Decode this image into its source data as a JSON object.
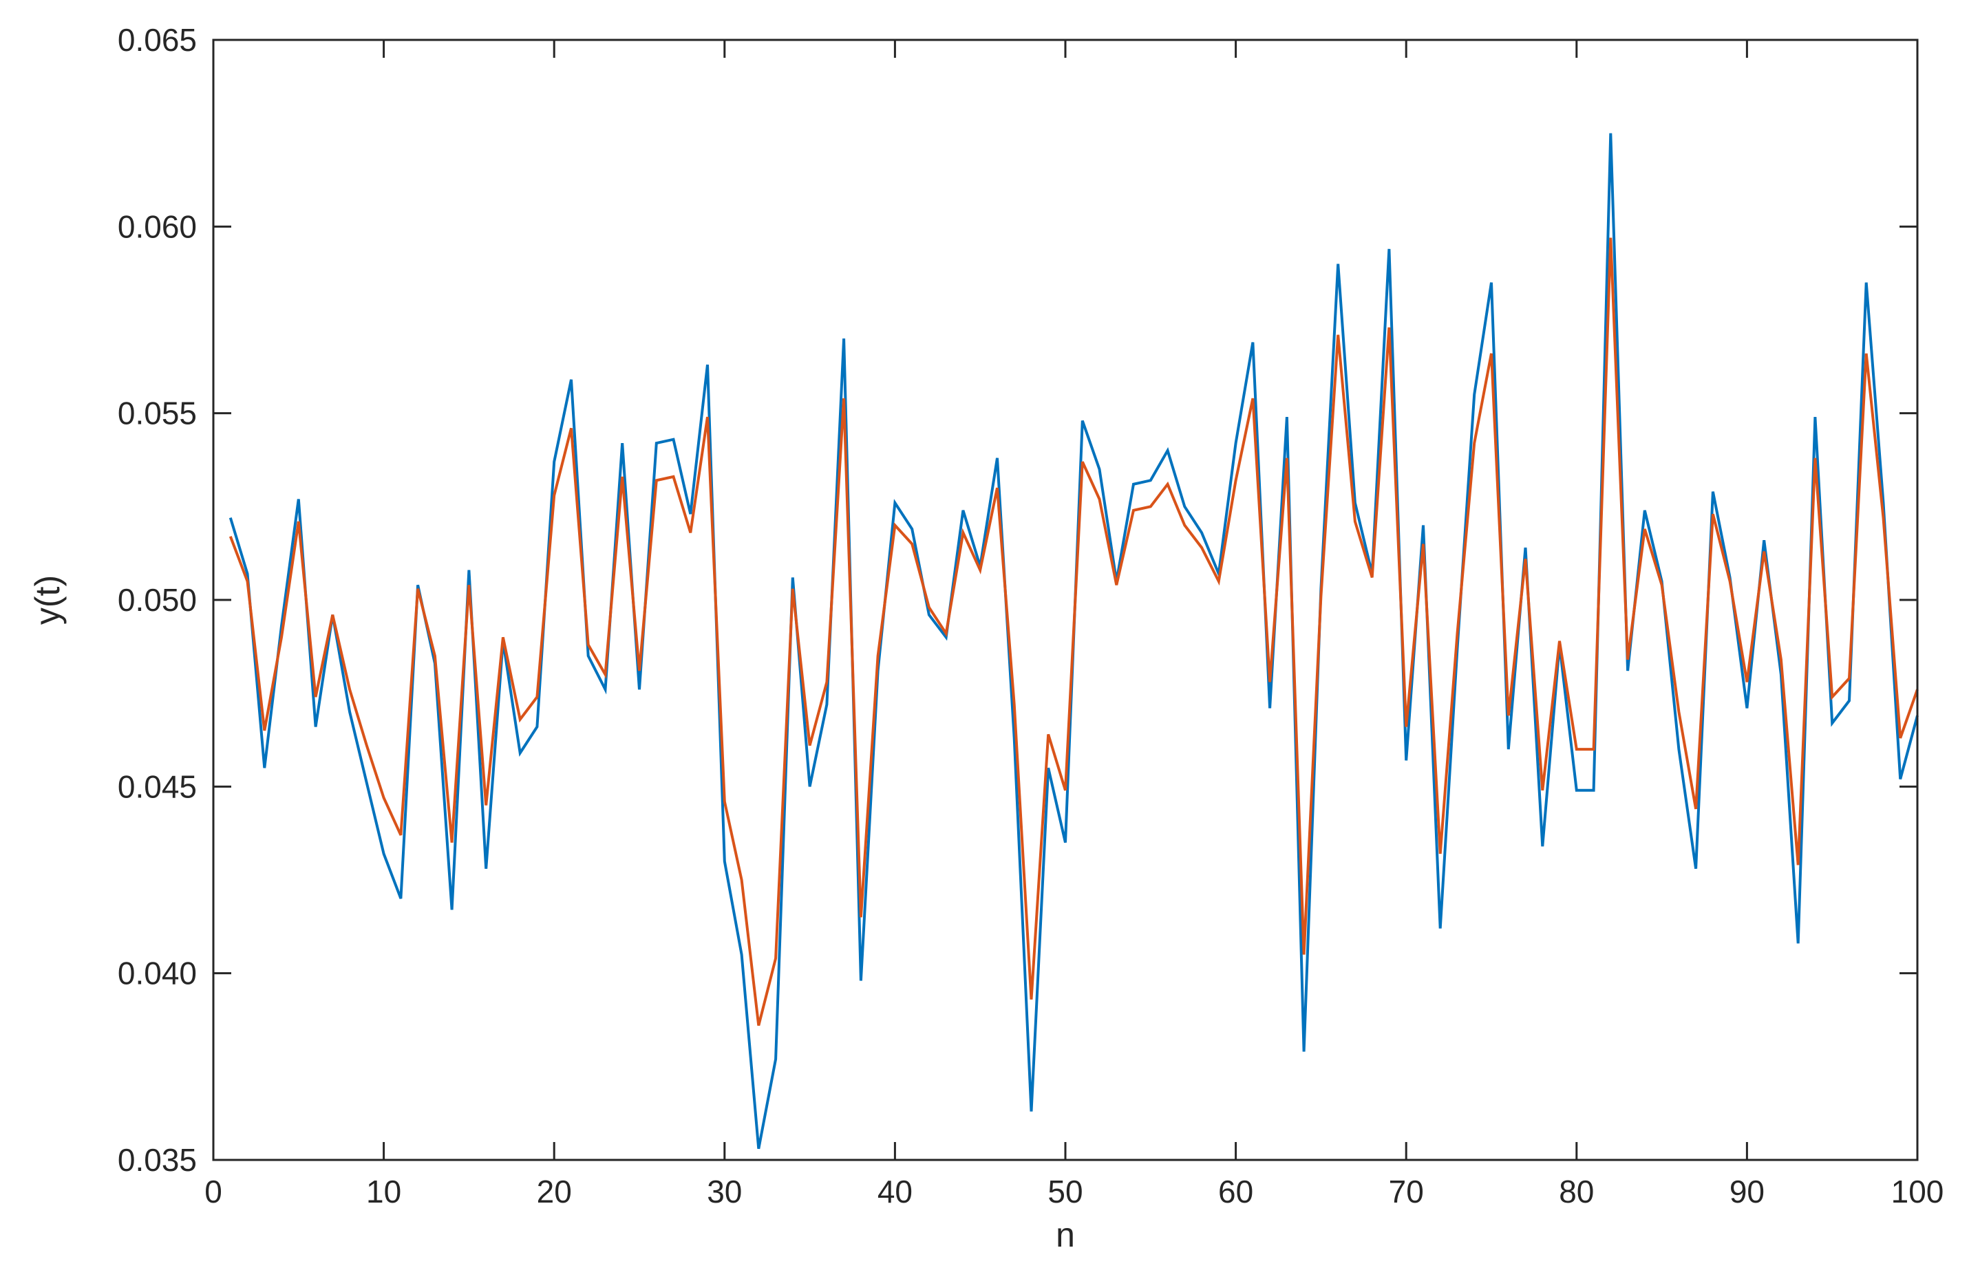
{
  "chart_data": {
    "type": "line",
    "xlabel": "n",
    "ylabel": "y(t)",
    "xlim": [
      0,
      100
    ],
    "ylim": [
      0.035,
      0.065
    ],
    "xticks": [
      0,
      10,
      20,
      30,
      40,
      50,
      60,
      70,
      80,
      90,
      100
    ],
    "xtick_labels": [
      "0",
      "10",
      "20",
      "30",
      "40",
      "50",
      "60",
      "70",
      "80",
      "90",
      "100"
    ],
    "yticks": [
      0.035,
      0.04,
      0.045,
      0.05,
      0.055,
      0.06,
      0.065
    ],
    "ytick_labels": [
      "0.035",
      "0.040",
      "0.045",
      "0.050",
      "0.055",
      "0.060",
      "0.065"
    ],
    "grid": false,
    "box": true,
    "x": [
      1,
      2,
      3,
      4,
      5,
      6,
      7,
      8,
      9,
      10,
      11,
      12,
      13,
      14,
      15,
      16,
      17,
      18,
      19,
      20,
      21,
      22,
      23,
      24,
      25,
      26,
      27,
      28,
      29,
      30,
      31,
      32,
      33,
      34,
      35,
      36,
      37,
      38,
      39,
      40,
      41,
      42,
      43,
      44,
      45,
      46,
      47,
      48,
      49,
      50,
      51,
      52,
      53,
      54,
      55,
      56,
      57,
      58,
      59,
      60,
      61,
      62,
      63,
      64,
      65,
      66,
      67,
      68,
      69,
      70,
      71,
      72,
      73,
      74,
      75,
      76,
      77,
      78,
      79,
      80,
      81,
      82,
      83,
      84,
      85,
      86,
      87,
      88,
      89,
      90,
      91,
      92,
      93,
      94,
      95,
      96,
      97,
      98,
      99,
      100
    ],
    "series": [
      {
        "color": "#0072BD",
        "values": [
          0.0522,
          0.0507,
          0.0455,
          0.0493,
          0.0527,
          0.0466,
          0.0496,
          0.047,
          0.0451,
          0.0432,
          0.042,
          0.0504,
          0.0483,
          0.0417,
          0.0508,
          0.0428,
          0.0489,
          0.0459,
          0.0466,
          0.0537,
          0.0559,
          0.0485,
          0.0476,
          0.0542,
          0.0476,
          0.0542,
          0.0543,
          0.0523,
          0.0563,
          0.043,
          0.0405,
          0.0353,
          0.0377,
          0.0506,
          0.045,
          0.0472,
          0.057,
          0.0398,
          0.0481,
          0.0526,
          0.0519,
          0.0496,
          0.049,
          0.0524,
          0.0509,
          0.0538,
          0.0463,
          0.0363,
          0.0455,
          0.0435,
          0.0548,
          0.0535,
          0.0505,
          0.0531,
          0.0532,
          0.054,
          0.0525,
          0.0518,
          0.0507,
          0.0542,
          0.0569,
          0.0471,
          0.0549,
          0.0379,
          0.0503,
          0.059,
          0.0526,
          0.0507,
          0.0594,
          0.0457,
          0.052,
          0.0412,
          0.0487,
          0.0555,
          0.0585,
          0.046,
          0.0514,
          0.0434,
          0.0488,
          0.0449,
          0.0449,
          0.0625,
          0.0481,
          0.0524,
          0.0505,
          0.046,
          0.0428,
          0.0529,
          0.0506,
          0.0471,
          0.0516,
          0.048,
          0.0408,
          0.0549,
          0.0467,
          0.0473,
          0.0585,
          0.0526,
          0.0452,
          0.0469
        ]
      },
      {
        "color": "#D95319",
        "values": [
          0.0517,
          0.0505,
          0.0465,
          0.049,
          0.0521,
          0.0474,
          0.0496,
          0.0476,
          0.0461,
          0.0447,
          0.0437,
          0.0503,
          0.0485,
          0.0435,
          0.0504,
          0.0445,
          0.049,
          0.0468,
          0.0474,
          0.0528,
          0.0546,
          0.0488,
          0.048,
          0.0533,
          0.0481,
          0.0532,
          0.0533,
          0.0518,
          0.0549,
          0.0446,
          0.0425,
          0.0386,
          0.0404,
          0.0503,
          0.0461,
          0.0478,
          0.0554,
          0.0415,
          0.0485,
          0.052,
          0.0515,
          0.0498,
          0.0491,
          0.0518,
          0.0508,
          0.053,
          0.0472,
          0.0393,
          0.0464,
          0.0449,
          0.0537,
          0.0527,
          0.0504,
          0.0524,
          0.0525,
          0.0531,
          0.052,
          0.0514,
          0.0505,
          0.0532,
          0.0554,
          0.0478,
          0.0538,
          0.0405,
          0.0501,
          0.0571,
          0.0521,
          0.0506,
          0.0573,
          0.0466,
          0.0515,
          0.0432,
          0.0491,
          0.0542,
          0.0566,
          0.0469,
          0.0511,
          0.0449,
          0.0489,
          0.046,
          0.046,
          0.0597,
          0.0484,
          0.0519,
          0.0504,
          0.047,
          0.0444,
          0.0523,
          0.0505,
          0.0478,
          0.0513,
          0.0484,
          0.0429,
          0.0538,
          0.0474,
          0.0479,
          0.0566,
          0.0522,
          0.0463,
          0.0476
        ]
      }
    ]
  }
}
